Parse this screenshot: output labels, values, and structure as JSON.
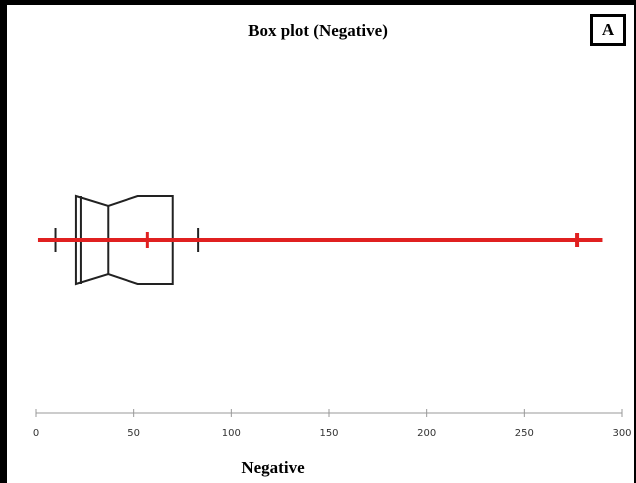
{
  "panel_label": "A",
  "chart_data": {
    "type": "box",
    "title": "Box plot (Negative)",
    "xlabel": "Negative",
    "ylabel": "",
    "xlim": [
      0,
      300
    ],
    "xticks": [
      0,
      50,
      100,
      150,
      200,
      250,
      300
    ],
    "grid": false,
    "box": {
      "whisker_low": 10,
      "q1": 23,
      "median": 37,
      "q3": 70,
      "whisker_high": 83,
      "notch_low": 23,
      "notch_high": 52
    },
    "red_overlay": {
      "min": 1,
      "max": 290,
      "mean": 57,
      "max_tick": 277
    },
    "colors": {
      "box": "#222222",
      "overlay": "#e02020",
      "axis": "#999999"
    }
  }
}
